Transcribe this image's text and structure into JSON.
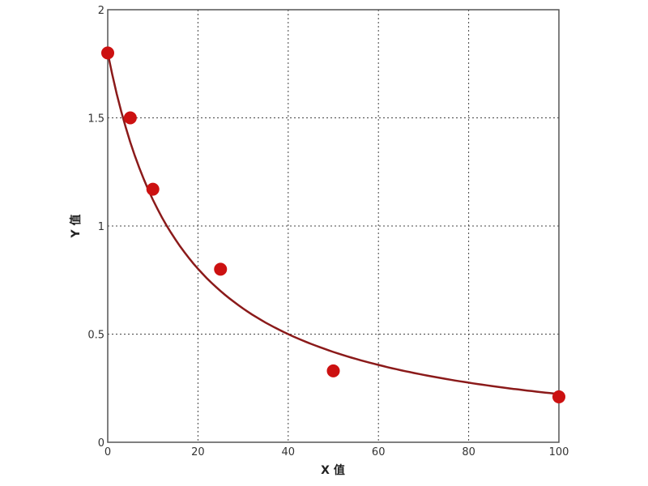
{
  "chart_data": {
    "type": "scatter",
    "title": "",
    "xlabel": "X 值",
    "ylabel": "Y 值",
    "xlim": [
      0,
      100
    ],
    "ylim": [
      0,
      2
    ],
    "x_ticks": [
      "0",
      "20",
      "40",
      "60",
      "80",
      "100"
    ],
    "y_ticks": [
      "0",
      "0.5",
      "1",
      "1.5",
      "2"
    ],
    "grid": true,
    "series": [
      {
        "x": [
          0,
          5,
          10,
          25,
          50,
          100
        ],
        "y": [
          1.8,
          1.5,
          1.17,
          0.8,
          0.33,
          0.21
        ],
        "color": "#cc1111",
        "fit_line": true,
        "fit_color": "#8b1a1a"
      }
    ]
  }
}
